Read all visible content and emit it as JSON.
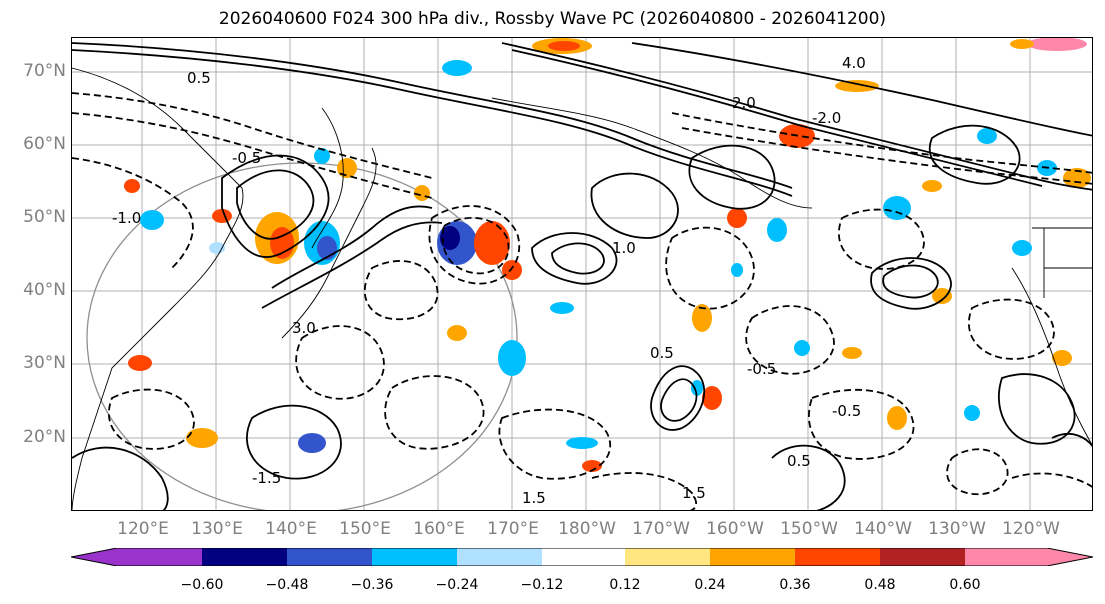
{
  "title": "2026040600 F024 300 hPa div., Rossby Wave PC (2026040800 - 2026041200)",
  "lat_labels": [
    "70°N",
    "60°N",
    "50°N",
    "40°N",
    "30°N",
    "20°N"
  ],
  "lon_labels": [
    "120°E",
    "130°E",
    "140°E",
    "150°E",
    "160°E",
    "170°E",
    "180°W",
    "170°W",
    "160°W",
    "150°W",
    "140°W",
    "130°W",
    "120°W"
  ],
  "colorbar": {
    "colors": [
      "#9933cc",
      "#000080",
      "#3355cc",
      "#00bfff",
      "#b0e0ff",
      "#ffffff",
      "#ffe680",
      "#ffa500",
      "#ff4500",
      "#b22222",
      "#ff88aa"
    ],
    "tick_labels": [
      "−0.60",
      "−0.48",
      "−0.36",
      "−0.24",
      "−0.12",
      "0.12",
      "0.24",
      "0.36",
      "0.48",
      "0.60"
    ]
  },
  "contour_labels": [
    "-0.5",
    "0.5",
    "1.0",
    "-1.0",
    "1.5",
    "-1.5",
    "2.0",
    "-2.0",
    "3.0",
    "4.0",
    "-0.5",
    "0.5",
    "-0.5",
    "0.5",
    "1.5"
  ]
}
